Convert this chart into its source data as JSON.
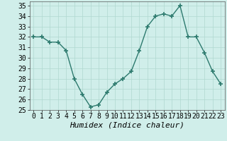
{
  "x": [
    0,
    1,
    2,
    3,
    4,
    5,
    6,
    7,
    8,
    9,
    10,
    11,
    12,
    13,
    14,
    15,
    16,
    17,
    18,
    19,
    20,
    21,
    22,
    23
  ],
  "y": [
    32,
    32,
    31.5,
    31.5,
    30.7,
    28,
    26.5,
    25.3,
    25.5,
    26.7,
    27.5,
    28,
    28.7,
    30.7,
    33,
    34,
    34.2,
    34,
    35,
    32,
    32,
    30.5,
    28.7,
    27.5
  ],
  "line_color": "#2d7a6e",
  "marker": "+",
  "marker_size": 4,
  "bg_color": "#d0eeea",
  "grid_color": "#b0d8d0",
  "xlabel": "Humidex (Indice chaleur)",
  "xlabel_fontsize": 8,
  "ytick_labels": [
    "25",
    "26",
    "27",
    "28",
    "29",
    "30",
    "31",
    "32",
    "33",
    "34",
    "35"
  ],
  "ytick_vals": [
    25,
    26,
    27,
    28,
    29,
    30,
    31,
    32,
    33,
    34,
    35
  ],
  "xtick_vals": [
    0,
    1,
    2,
    3,
    4,
    5,
    6,
    7,
    8,
    9,
    10,
    11,
    12,
    13,
    14,
    15,
    16,
    17,
    18,
    19,
    20,
    21,
    22,
    23
  ],
  "ylim": [
    25,
    35.4
  ],
  "xlim": [
    -0.5,
    23.5
  ],
  "tick_fontsize": 7,
  "linewidth": 1.0
}
